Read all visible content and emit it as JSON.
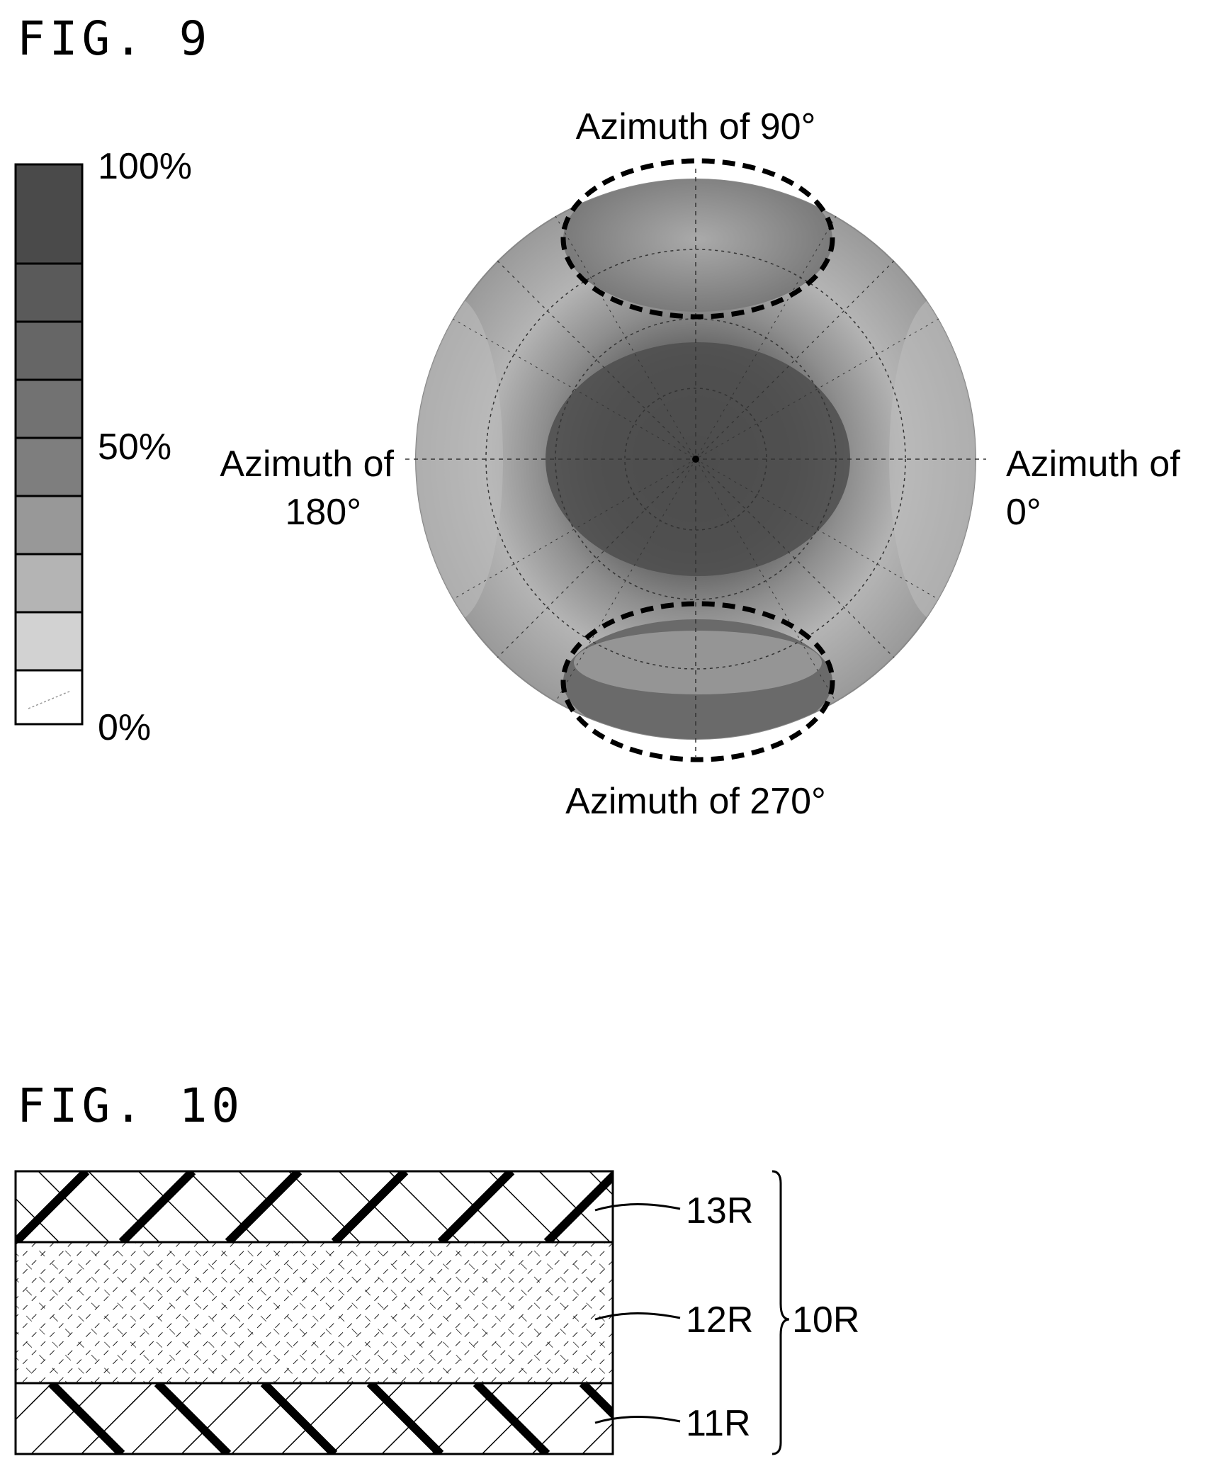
{
  "fig9": {
    "title": "FIG. 9",
    "scale_bar": {
      "top_label": "100%",
      "mid_label": "50%",
      "bottom_label": "0%",
      "levels": [
        "#4a4a4a",
        "#5a5a5a",
        "#666666",
        "#727272",
        "#7e7e7e",
        "#989898",
        "#b4b4b4",
        "#d2d2d2",
        "#ffffff"
      ]
    },
    "polar_plot": {
      "label_top": "Azimuth of 90°",
      "label_bottom": "Azimuth of 270°",
      "label_left_line1": "Azimuth of",
      "label_left_line2": "180°",
      "label_right_line1": "Azimuth of",
      "label_right_line2": "0°"
    }
  },
  "fig10": {
    "title": "FIG. 10",
    "layers": {
      "top": "13R",
      "middle": "12R",
      "bottom": "11R"
    },
    "group_label": "10R"
  }
}
